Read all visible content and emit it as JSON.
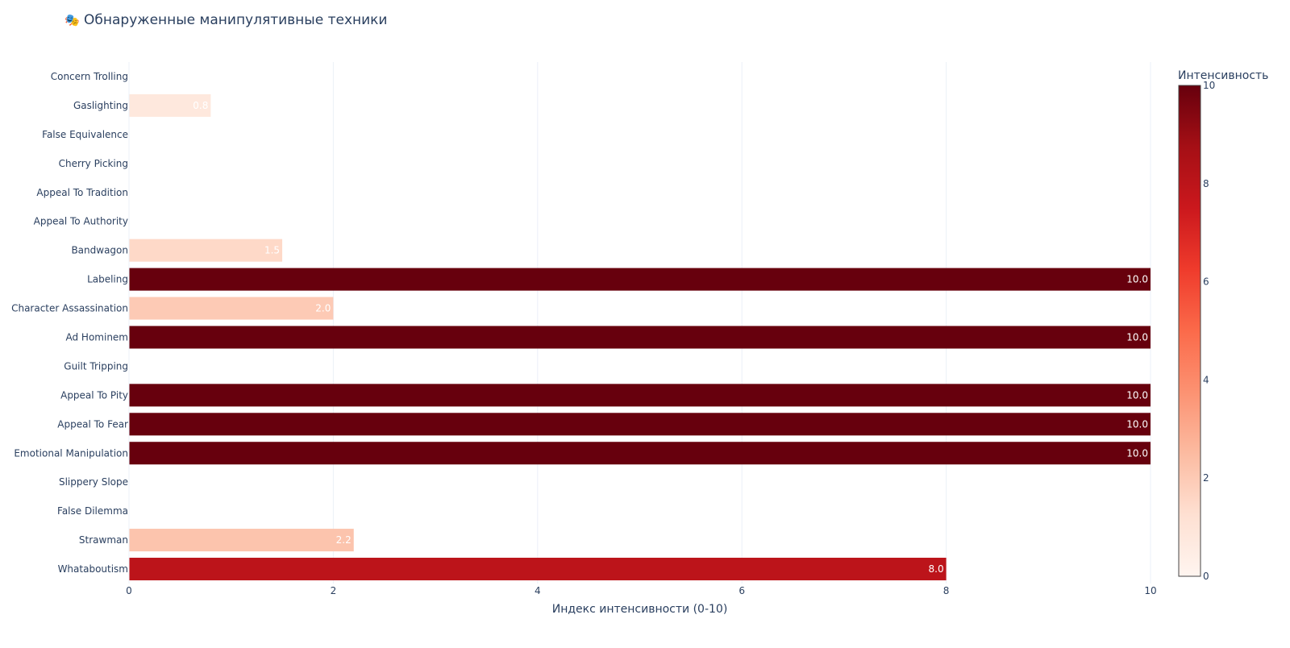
{
  "title": {
    "icon": "theater-masks-icon",
    "icon_glyph": "🎭",
    "text": "Обнаруженные манипулятивные техники"
  },
  "chart_data": {
    "type": "bar",
    "orientation": "horizontal",
    "categories": [
      "Concern Trolling",
      "Gaslighting",
      "False Equivalence",
      "Cherry Picking",
      "Appeal To Tradition",
      "Appeal To Authority",
      "Bandwagon",
      "Labeling",
      "Character Assassination",
      "Ad Hominem",
      "Guilt Tripping",
      "Appeal To Pity",
      "Appeal To Fear",
      "Emotional Manipulation",
      "Slippery Slope",
      "False Dilemma",
      "Strawman",
      "Whataboutism"
    ],
    "values": [
      0,
      0.8,
      0,
      0,
      0,
      0,
      1.5,
      10.0,
      2.0,
      10.0,
      0,
      10.0,
      10.0,
      10.0,
      0,
      0,
      2.2,
      8.0
    ],
    "data_labels": [
      "",
      "0.8",
      "",
      "",
      "",
      "",
      "1.5",
      "10.0",
      "2.0",
      "10.0",
      "",
      "10.0",
      "10.0",
      "10.0",
      "",
      "",
      "2.2",
      "8.0"
    ],
    "xlabel": "Индекс интенсивности (0-10)",
    "ylabel": "",
    "xlim": [
      0,
      10
    ],
    "xticks": [
      0,
      2,
      4,
      6,
      8,
      10
    ],
    "xtick_labels": [
      "0",
      "2",
      "4",
      "6",
      "8",
      "10"
    ],
    "grid": true,
    "colorscale": "Reds",
    "colorbar": {
      "title": "Интенсивность",
      "range": [
        0,
        10
      ],
      "ticks": [
        0,
        2,
        4,
        6,
        8,
        10
      ],
      "tick_labels": [
        "0",
        "2",
        "4",
        "6",
        "8",
        "10"
      ],
      "placement": "right"
    },
    "colors": {
      "low": "#fff5f0",
      "high": "#67000d",
      "grid": "#ebf0f8",
      "text": "#2a3f5f"
    }
  }
}
